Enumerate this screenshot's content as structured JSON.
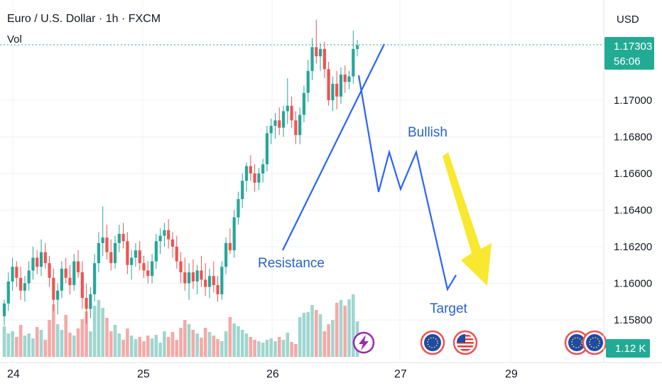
{
  "header": {
    "title": "Euro / U.S. Dollar · 1h · FXCM",
    "volume_label": "Vol",
    "currency": "USD"
  },
  "colors": {
    "up": "#26a69a",
    "down": "#ef5350",
    "vol_up": "#9fd6cf",
    "vol_down": "#f4a9a7",
    "annotation": "#2962ff",
    "arrow": "#f8e82f",
    "price_tag": "#22ab94",
    "grid": "#eef0f3"
  },
  "price_tag": {
    "price": "1.17303",
    "countdown": "56:06"
  },
  "volume_tag": "1.12 K",
  "chart_data": {
    "type": "candlestick",
    "y_axis": {
      "ticks": [
        "1.17000",
        "1.16800",
        "1.16600",
        "1.16400",
        "1.16200",
        "1.16000",
        "1.15800"
      ],
      "range": [
        1.1565,
        1.1748
      ]
    },
    "x_axis": {
      "labels": [
        "24",
        "25",
        "26",
        "27",
        "29"
      ]
    },
    "last_price": 1.17303,
    "annotations": [
      "Resistance",
      "Bullish",
      "Target"
    ],
    "event_icons": [
      "flash-event",
      "eu-event",
      "us-event",
      "eu-event",
      "eu-event"
    ],
    "candles": [
      [
        1.1582,
        1.1591,
        1.1577,
        1.1589
      ],
      [
        1.1589,
        1.1606,
        1.1585,
        1.1601
      ],
      [
        1.1601,
        1.1614,
        1.1596,
        1.1609
      ],
      [
        1.1609,
        1.1612,
        1.1598,
        1.1603
      ],
      [
        1.1603,
        1.1609,
        1.1591,
        1.1596
      ],
      [
        1.1596,
        1.1604,
        1.159,
        1.16
      ],
      [
        1.16,
        1.1612,
        1.1596,
        1.1607
      ],
      [
        1.1607,
        1.162,
        1.1602,
        1.1614
      ],
      [
        1.1614,
        1.1618,
        1.1605,
        1.1609
      ],
      [
        1.1609,
        1.1624,
        1.1604,
        1.1617
      ],
      [
        1.1617,
        1.1622,
        1.1608,
        1.1611
      ],
      [
        1.1611,
        1.1615,
        1.1598,
        1.1603
      ],
      [
        1.1603,
        1.1608,
        1.1585,
        1.1591
      ],
      [
        1.1591,
        1.16,
        1.1583,
        1.1596
      ],
      [
        1.1596,
        1.1612,
        1.1592,
        1.1608
      ],
      [
        1.1608,
        1.1614,
        1.16,
        1.1603
      ],
      [
        1.1603,
        1.161,
        1.1594,
        1.1599
      ],
      [
        1.1599,
        1.1616,
        1.1596,
        1.1612
      ],
      [
        1.1612,
        1.1618,
        1.1603,
        1.1606
      ],
      [
        1.1606,
        1.1612,
        1.1586,
        1.1592
      ],
      [
        1.1592,
        1.16,
        1.1578,
        1.1586
      ],
      [
        1.1586,
        1.1598,
        1.1581,
        1.1594
      ],
      [
        1.1594,
        1.1616,
        1.159,
        1.1611
      ],
      [
        1.1611,
        1.1628,
        1.1606,
        1.1622
      ],
      [
        1.1622,
        1.1642,
        1.1615,
        1.1625
      ],
      [
        1.1625,
        1.1632,
        1.1613,
        1.1617
      ],
      [
        1.1617,
        1.1624,
        1.1607,
        1.1611
      ],
      [
        1.1611,
        1.1626,
        1.1608,
        1.1622
      ],
      [
        1.1622,
        1.1632,
        1.1617,
        1.1627
      ],
      [
        1.1627,
        1.1633,
        1.1619,
        1.1623
      ],
      [
        1.1623,
        1.1628,
        1.1605,
        1.161
      ],
      [
        1.161,
        1.1618,
        1.1602,
        1.1614
      ],
      [
        1.1614,
        1.1622,
        1.1609,
        1.1618
      ],
      [
        1.1618,
        1.1623,
        1.1607,
        1.1611
      ],
      [
        1.1611,
        1.1615,
        1.1603,
        1.1607
      ],
      [
        1.1607,
        1.1612,
        1.16,
        1.1604
      ],
      [
        1.1604,
        1.1616,
        1.16,
        1.1612
      ],
      [
        1.1612,
        1.1627,
        1.1608,
        1.1623
      ],
      [
        1.1623,
        1.163,
        1.1616,
        1.1626
      ],
      [
        1.1626,
        1.1633,
        1.162,
        1.1629
      ],
      [
        1.1629,
        1.1635,
        1.1619,
        1.1624
      ],
      [
        1.1624,
        1.1628,
        1.1614,
        1.162
      ],
      [
        1.162,
        1.1626,
        1.1608,
        1.1612
      ],
      [
        1.1612,
        1.1617,
        1.16,
        1.1606
      ],
      [
        1.1606,
        1.1614,
        1.1596,
        1.16
      ],
      [
        1.16,
        1.1611,
        1.1591,
        1.1606
      ],
      [
        1.1606,
        1.1613,
        1.1597,
        1.1601
      ],
      [
        1.1601,
        1.161,
        1.1594,
        1.1607
      ],
      [
        1.1607,
        1.1615,
        1.1598,
        1.1602
      ],
      [
        1.1602,
        1.1611,
        1.1593,
        1.1598
      ],
      [
        1.1598,
        1.1608,
        1.1592,
        1.1604
      ],
      [
        1.1604,
        1.1612,
        1.1595,
        1.1599
      ],
      [
        1.1599,
        1.1604,
        1.159,
        1.1594
      ],
      [
        1.1594,
        1.1612,
        1.1591,
        1.1609
      ],
      [
        1.1609,
        1.1625,
        1.1605,
        1.1622
      ],
      [
        1.1622,
        1.163,
        1.1616,
        1.1618
      ],
      [
        1.1618,
        1.164,
        1.1614,
        1.1636
      ],
      [
        1.1636,
        1.165,
        1.1632,
        1.1646
      ],
      [
        1.1646,
        1.166,
        1.1641,
        1.1656
      ],
      [
        1.1656,
        1.1666,
        1.165,
        1.1664
      ],
      [
        1.1664,
        1.167,
        1.1656,
        1.166
      ],
      [
        1.166,
        1.1665,
        1.165,
        1.1655
      ],
      [
        1.1655,
        1.1663,
        1.1651,
        1.166
      ],
      [
        1.166,
        1.1668,
        1.1655,
        1.1665
      ],
      [
        1.1665,
        1.1686,
        1.1661,
        1.1682
      ],
      [
        1.1682,
        1.169,
        1.1676,
        1.1686
      ],
      [
        1.1686,
        1.1693,
        1.1679,
        1.1689
      ],
      [
        1.1689,
        1.1696,
        1.1681,
        1.1685
      ],
      [
        1.1685,
        1.1697,
        1.168,
        1.1694
      ],
      [
        1.1694,
        1.1712,
        1.1687,
        1.1697
      ],
      [
        1.1697,
        1.1702,
        1.1685,
        1.1689
      ],
      [
        1.1689,
        1.1694,
        1.1676,
        1.1681
      ],
      [
        1.1681,
        1.1696,
        1.1676,
        1.1692
      ],
      [
        1.1692,
        1.1708,
        1.1688,
        1.1704
      ],
      [
        1.1704,
        1.1722,
        1.1699,
        1.1716
      ],
      [
        1.1716,
        1.1734,
        1.1711,
        1.1729
      ],
      [
        1.1729,
        1.1744,
        1.172,
        1.1724
      ],
      [
        1.1724,
        1.1731,
        1.1716,
        1.1728
      ],
      [
        1.1728,
        1.1732,
        1.1712,
        1.1717
      ],
      [
        1.1717,
        1.1721,
        1.1697,
        1.17
      ],
      [
        1.17,
        1.1713,
        1.1694,
        1.1709
      ],
      [
        1.1709,
        1.1716,
        1.1695,
        1.1702
      ],
      [
        1.1702,
        1.1718,
        1.1698,
        1.1714
      ],
      [
        1.1714,
        1.1719,
        1.1704,
        1.171
      ],
      [
        1.171,
        1.1716,
        1.1706,
        1.1713
      ],
      [
        1.1713,
        1.1738,
        1.1709,
        1.1728
      ],
      [
        1.1728,
        1.1733,
        1.1724,
        1.173
      ]
    ],
    "volumes": [
      0.43,
      0.33,
      0.36,
      0.28,
      0.45,
      0.3,
      0.33,
      0.26,
      0.42,
      0.38,
      0.24,
      0.52,
      0.74,
      0.46,
      0.38,
      0.59,
      0.34,
      0.3,
      0.4,
      0.53,
      0.64,
      0.36,
      0.72,
      0.8,
      0.69,
      0.55,
      0.36,
      0.45,
      0.33,
      0.24,
      0.4,
      0.3,
      0.25,
      0.28,
      0.22,
      0.3,
      0.26,
      0.31,
      0.2,
      0.36,
      0.28,
      0.35,
      0.24,
      0.41,
      0.52,
      0.46,
      0.38,
      0.33,
      0.27,
      0.41,
      0.35,
      0.3,
      0.25,
      0.22,
      0.36,
      0.56,
      0.47,
      0.43,
      0.38,
      0.33,
      0.28,
      0.24,
      0.22,
      0.2,
      0.24,
      0.26,
      0.22,
      0.28,
      0.24,
      0.34,
      0.21,
      0.18,
      0.56,
      0.62,
      0.63,
      0.73,
      0.66,
      0.6,
      0.36,
      0.46,
      0.52,
      0.76,
      0.8,
      0.72,
      0.81,
      0.88,
      0.5
    ]
  }
}
